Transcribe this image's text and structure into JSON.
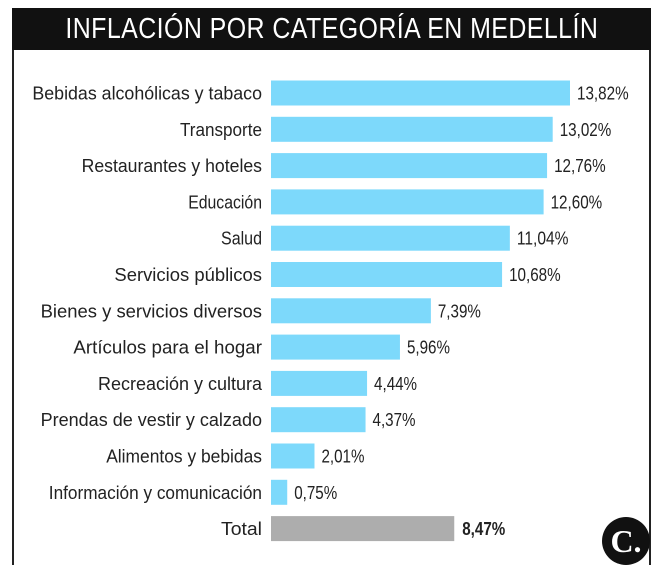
{
  "title": "INFLACIÓN POR CATEGORÍA EN MEDELLÍN",
  "colors": {
    "bar": "#7dd9fb",
    "total_bar": "#adadad",
    "title_bg": "#111111",
    "text": "#222222"
  },
  "logo": {
    "letter": "C.",
    "icon": "el-colombiano-logo-icon"
  },
  "chart_data": {
    "type": "bar",
    "orientation": "horizontal",
    "categories": [
      "Bebidas alcohólicas y tabaco",
      "Transporte",
      "Restaurantes y hoteles",
      "Educación",
      "Salud",
      "Servicios públicos",
      "Bienes y servicios diversos",
      "Artículos para el hogar",
      "Recreación y cultura",
      "Prendas de vestir y calzado",
      "Alimentos y bebidas",
      "Información y comunicación",
      "Total"
    ],
    "values": [
      13.82,
      13.02,
      12.76,
      12.6,
      11.04,
      10.68,
      7.39,
      5.96,
      4.44,
      4.37,
      2.01,
      0.75,
      8.47
    ],
    "labels": [
      "13,82%",
      "13,02%",
      "12,76%",
      "12,60%",
      "11,04%",
      "10,68%",
      "7,39%",
      "5,96%",
      "4,44%",
      "4,37%",
      "2,01%",
      "0,75%",
      "8,47%"
    ],
    "highlight": "Total",
    "xlim": [
      0,
      13.82
    ],
    "grid": false,
    "legend": "none"
  }
}
